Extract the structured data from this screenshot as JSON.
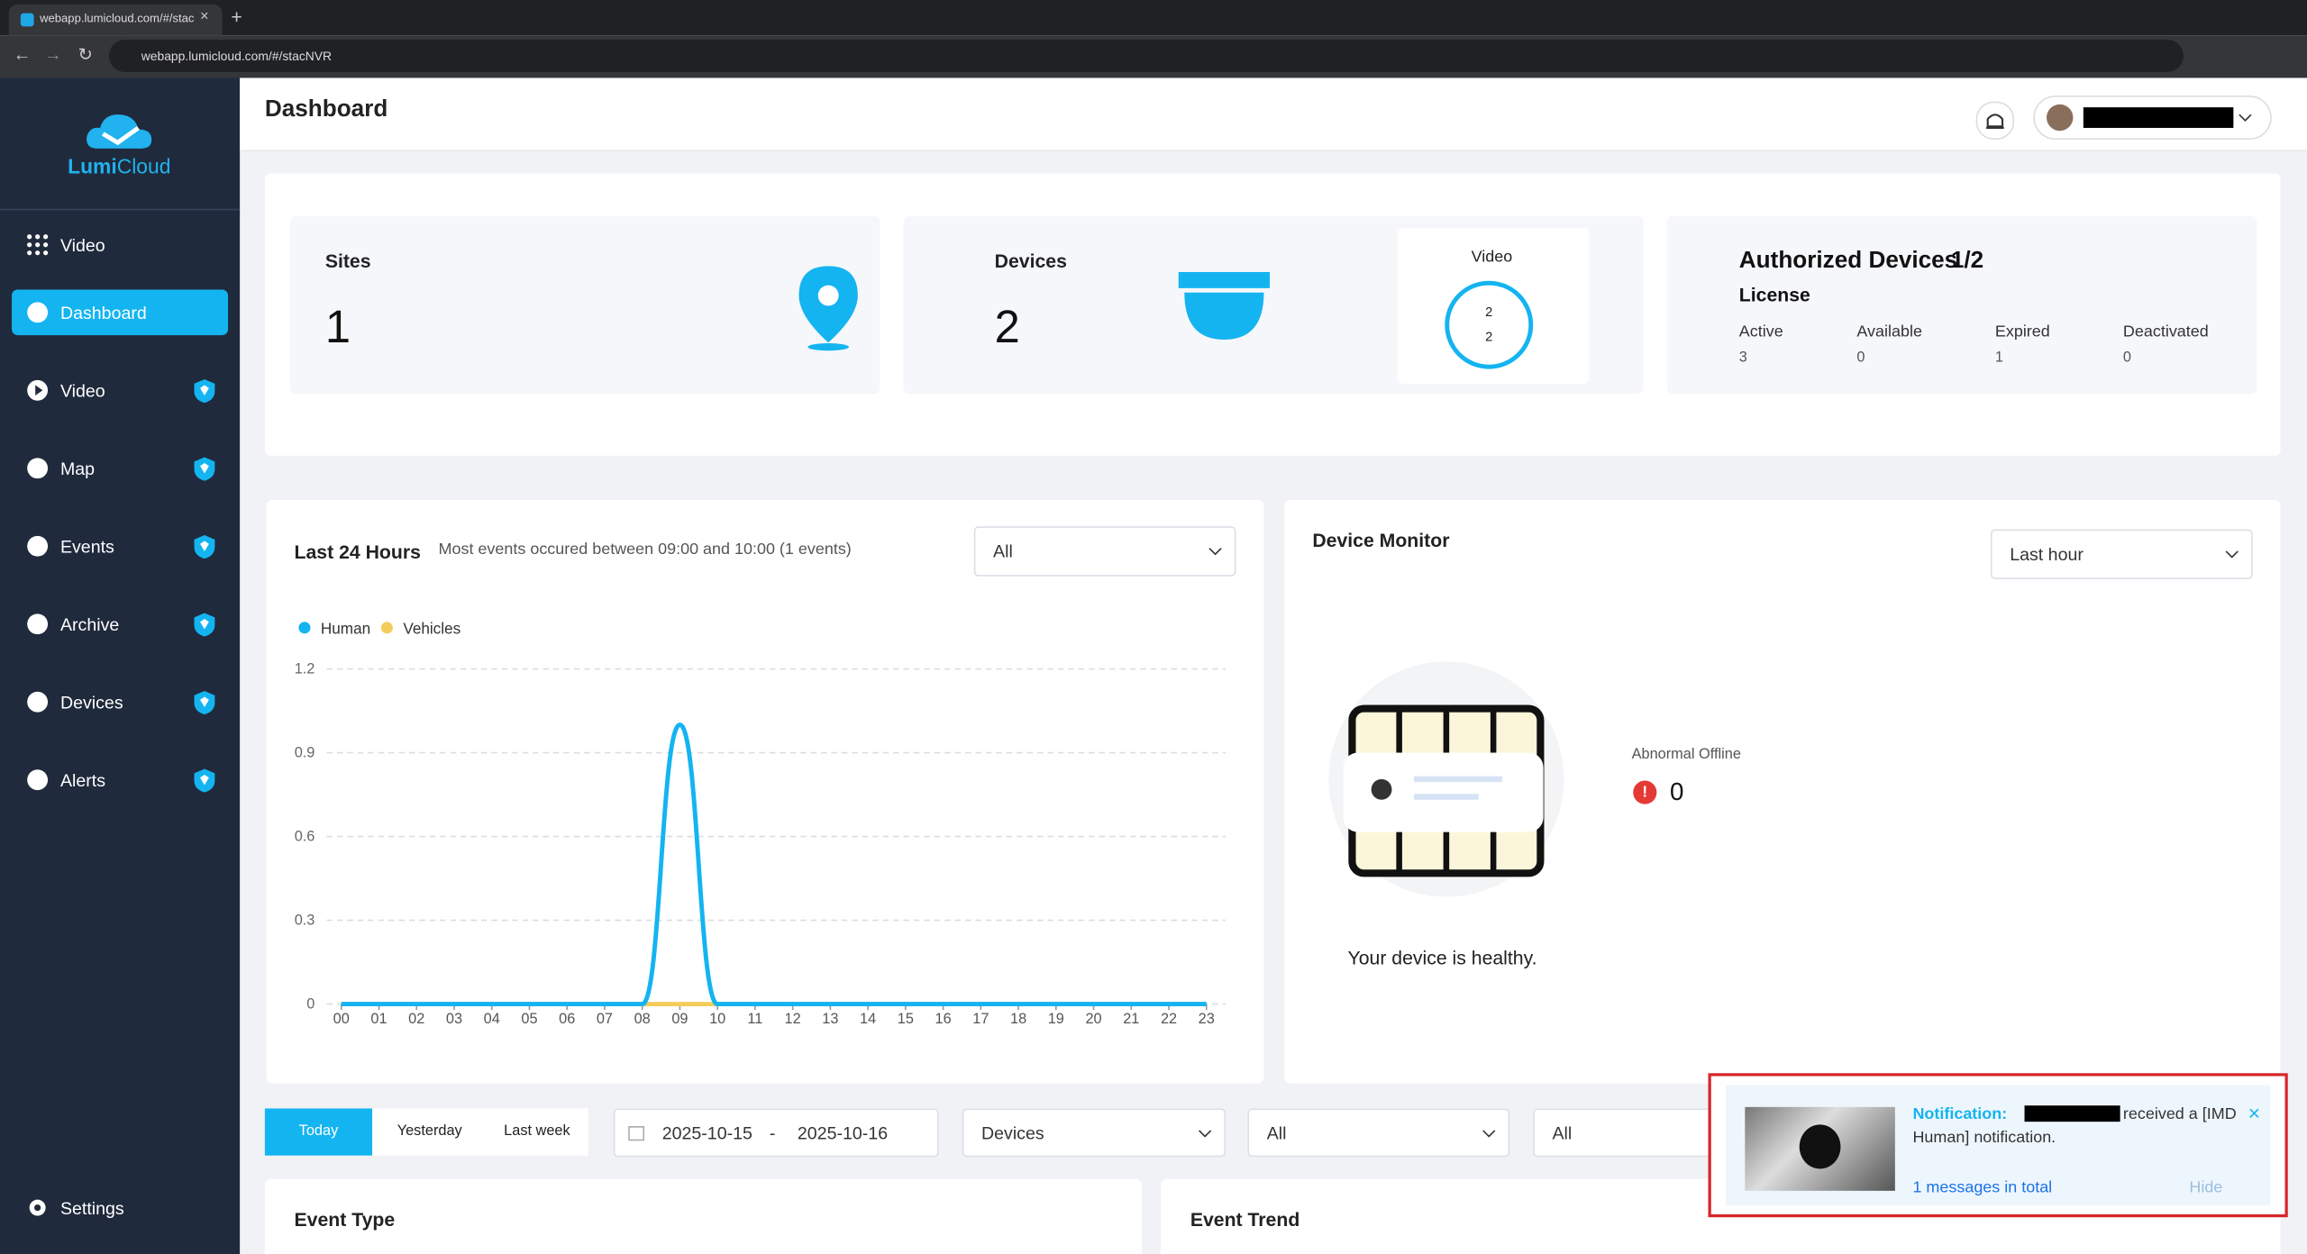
{
  "browser": {
    "tab_title": "webapp.lumicloud.com/#/stac",
    "url": "webapp.lumicloud.com/#/stacNVR"
  },
  "sidebar": {
    "logo_bold": "Lumi",
    "logo_light": "Cloud",
    "top_item": "Video",
    "items": [
      "Dashboard",
      "Video",
      "Map",
      "Events",
      "Archive",
      "Devices",
      "Alerts"
    ],
    "settings": "Settings"
  },
  "header": {
    "title": "Dashboard"
  },
  "summary": {
    "sites": {
      "label": "Sites",
      "value": "1"
    },
    "devices": {
      "label": "Devices",
      "value": "2"
    },
    "video": {
      "label": "Video",
      "online": "2",
      "total": "2"
    },
    "authorized": {
      "title": "Authorized Devices",
      "ratio": "1/2",
      "license": "License",
      "stats": [
        {
          "label": "Active",
          "value": "3"
        },
        {
          "label": "Available",
          "value": "0"
        },
        {
          "label": "Expired",
          "value": "1"
        },
        {
          "label": "Deactivated",
          "value": "0"
        }
      ]
    }
  },
  "last24": {
    "title": "Last 24 Hours",
    "note": "Most events occured between 09:00 and 10:00 (1 events)",
    "filter": "All",
    "chart": {
      "type": "line",
      "categories": [
        "00",
        "01",
        "02",
        "03",
        "04",
        "05",
        "06",
        "07",
        "08",
        "09",
        "10",
        "11",
        "12",
        "13",
        "14",
        "15",
        "16",
        "17",
        "18",
        "19",
        "20",
        "21",
        "22",
        "23"
      ],
      "series": [
        {
          "name": "Human",
          "color": "#14b4f0",
          "values": [
            0,
            0,
            0,
            0,
            0,
            0,
            0,
            0,
            0,
            1,
            0,
            0,
            0,
            0,
            0,
            0,
            0,
            0,
            0,
            0,
            0,
            0,
            0,
            0
          ]
        },
        {
          "name": "Vehicles",
          "color": "#f5cc5a",
          "values": [
            0,
            0,
            0,
            0,
            0,
            0,
            0,
            0,
            0,
            0,
            0,
            0,
            0,
            0,
            0,
            0,
            0,
            0,
            0,
            0,
            0,
            0,
            0,
            0
          ]
        }
      ],
      "ylim": [
        0,
        1.2
      ],
      "yticks": [
        0,
        0.3,
        0.6,
        0.9,
        1.2
      ],
      "grid": true
    }
  },
  "monitor": {
    "title": "Device Monitor",
    "filter": "Last hour",
    "offline_label": "Abnormal Offline",
    "offline_value": "0",
    "status": "Your device is healthy."
  },
  "filters": {
    "ranges": [
      "Today",
      "Yesterday",
      "Last week"
    ],
    "date_from": "2025-10-15",
    "date_sep": "-",
    "date_to": "2025-10-16",
    "devices": "Devices",
    "select2": "All",
    "select3": "All"
  },
  "sections": {
    "event_type": "Event Type",
    "event_trend": "Event Trend"
  },
  "notification": {
    "label": "Notification:",
    "text_1": "received a [IMD",
    "text_2": "Human] notification.",
    "total": "1 messages in total",
    "hide": "Hide"
  }
}
